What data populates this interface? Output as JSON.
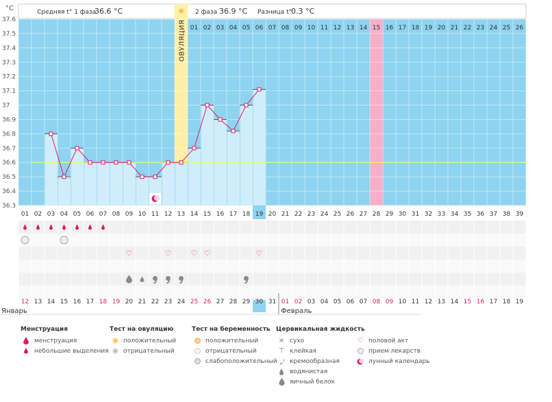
{
  "chart_data": {
    "type": "line",
    "unit_label": "°C",
    "y_ticks": [
      "37.6",
      "37.5",
      "37.4",
      "37.3",
      "37.2",
      "37.1",
      "37",
      "36.9",
      "36.8",
      "36.7",
      "36.6",
      "36.5",
      "36.4",
      "36.3"
    ],
    "ylim": [
      36.3,
      37.6
    ],
    "coverline": 36.6,
    "header": {
      "phase1": "Средняя t° 1 фаза",
      "phase1_value": "36.6 °C",
      "phase2": "2 фаза",
      "phase2_value": "36.9 °C",
      "diff": "Разница t°",
      "diff_value": "0.3 °C"
    },
    "ovulation_label": "ОВУЛЯЦИЯ",
    "ovulation_day": 13,
    "highlight_day": 28,
    "today_day": 19,
    "luteal_numbers": [
      "01",
      "02",
      "03",
      "04",
      "05",
      "06",
      "07",
      "08",
      "09",
      "10",
      "11",
      "12",
      "13",
      "14",
      "15",
      "16",
      "17",
      "18",
      "19",
      "20",
      "21",
      "22",
      "23",
      "24",
      "25",
      "26"
    ],
    "days": [
      "01",
      "02",
      "03",
      "04",
      "05",
      "06",
      "07",
      "08",
      "09",
      "10",
      "11",
      "12",
      "13",
      "14",
      "15",
      "16",
      "17",
      "18",
      "19",
      "20",
      "21",
      "22",
      "23",
      "24",
      "25",
      "26",
      "27",
      "28",
      "29",
      "30",
      "31",
      "32",
      "33",
      "34",
      "35",
      "36",
      "37",
      "38",
      "39"
    ],
    "temperatures": [
      null,
      null,
      36.8,
      36.5,
      36.7,
      36.6,
      36.6,
      36.6,
      36.6,
      36.5,
      36.5,
      36.6,
      36.6,
      36.7,
      37.0,
      36.9,
      36.82,
      37.0,
      37.11,
      null,
      null,
      null,
      null,
      null,
      null,
      null,
      null,
      null,
      null,
      null,
      null,
      null,
      null,
      null,
      null,
      null,
      null,
      null,
      null
    ],
    "moon_day": 11,
    "symptoms": {
      "menstruation_small": [
        1,
        2,
        3,
        4,
        5,
        6,
        7
      ],
      "pill": [
        1,
        4
      ],
      "heart": [
        9,
        12,
        14,
        15,
        19
      ],
      "fluid_egg": [
        9
      ],
      "fluid_watery": [
        10
      ],
      "fluid_creamy": [
        11,
        12,
        13,
        18
      ]
    },
    "dates": [
      "12",
      "13",
      "14",
      "15",
      "16",
      "17",
      "18",
      "19",
      "20",
      "21",
      "22",
      "23",
      "24",
      "25",
      "26",
      "27",
      "28",
      "29",
      "30",
      "31",
      "01",
      "02",
      "03",
      "04",
      "05",
      "06",
      "07",
      "08",
      "09",
      "10",
      "11",
      "12",
      "13",
      "14",
      "15",
      "16",
      "17",
      "18",
      "19"
    ],
    "red_date_idx": [
      0,
      6,
      7,
      13,
      14,
      20,
      21,
      27,
      28,
      34,
      35
    ],
    "today_date_idx": 18,
    "month_left": "Январь",
    "month_right": "Февраль",
    "colors": {
      "blue_bg": "#8ed3f0",
      "bar": "#cfedfb",
      "bar_edge": "#a6dbf3",
      "line": "#e01a67",
      "ovulation": "#fff0a6",
      "highlight": "#f9aec9",
      "red": "#e01a67",
      "today": "#8ed3f0"
    }
  },
  "legend": {
    "menstruation": {
      "title": "Менструация",
      "items": [
        "менструация",
        "небольшие выделения"
      ]
    },
    "ovulation_test": {
      "title": "Тест на овуляцию",
      "items": [
        "положительный",
        "отрицательный"
      ]
    },
    "pregnancy_test": {
      "title": "Тест на беременность",
      "items": [
        "положительный",
        "отрицательный",
        "слабоположительный"
      ]
    },
    "cervical": {
      "title": "Цервикальная жидкость",
      "items": [
        "сухо",
        "клейкая",
        "кремообразная",
        "водянистая",
        "яичный белок"
      ]
    },
    "other": {
      "items": [
        "половой акт",
        "прием лекарств",
        "лунный календарь"
      ]
    }
  }
}
